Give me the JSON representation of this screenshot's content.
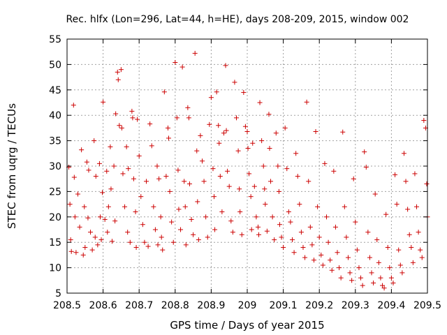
{
  "chart_data": {
    "type": "scatter",
    "title": "Rec. hlfx (Lon=296, Lat=44, h=HE), days 208-209, 2015, window 002",
    "xlabel": "GPS time / Days of year 2015",
    "ylabel": "STEC from uqrg / TECUs",
    "xlim": [
      208.5,
      209.5
    ],
    "ylim": [
      5,
      55
    ],
    "xticks": [
      208.5,
      208.6,
      208.7,
      208.8,
      208.9,
      209,
      209.1,
      209.2,
      209.3,
      209.4,
      209.5
    ],
    "xtick_labels": [
      "208.5",
      "208.6",
      "208.7",
      "208.8",
      "208.9",
      "209",
      "209.1",
      "209.2",
      "209.3",
      "209.4",
      "209.5"
    ],
    "yticks": [
      5,
      10,
      15,
      20,
      25,
      30,
      35,
      40,
      45,
      50,
      55
    ],
    "ytick_labels": [
      "5",
      "10",
      "15",
      "20",
      "25",
      "30",
      "35",
      "40",
      "45",
      "50",
      "55"
    ],
    "grid": true,
    "marker": "+",
    "color": "#cc0000",
    "series": [
      {
        "name": "STEC",
        "points": [
          [
            208.505,
            29.8
          ],
          [
            208.508,
            22.5
          ],
          [
            208.51,
            15.5
          ],
          [
            208.512,
            13.2
          ],
          [
            208.518,
            42
          ],
          [
            208.52,
            27.8
          ],
          [
            208.522,
            20
          ],
          [
            208.525,
            13
          ],
          [
            208.53,
            24.5
          ],
          [
            208.535,
            18
          ],
          [
            208.54,
            33.2
          ],
          [
            208.545,
            12.5
          ],
          [
            208.548,
            22
          ],
          [
            208.55,
            14
          ],
          [
            208.555,
            30.8
          ],
          [
            208.558,
            19.8
          ],
          [
            208.56,
            29.2
          ],
          [
            208.565,
            17
          ],
          [
            208.57,
            13.5
          ],
          [
            208.575,
            35
          ],
          [
            208.578,
            16
          ],
          [
            208.58,
            28
          ],
          [
            208.585,
            14.5
          ],
          [
            208.59,
            30.5
          ],
          [
            208.592,
            20
          ],
          [
            208.595,
            15.5
          ],
          [
            208.598,
            24.8
          ],
          [
            208.6,
            42.6
          ],
          [
            208.605,
            19.5
          ],
          [
            208.61,
            29
          ],
          [
            208.612,
            17
          ],
          [
            208.615,
            22
          ],
          [
            208.62,
            33.8
          ],
          [
            208.622,
            25.5
          ],
          [
            208.625,
            15.2
          ],
          [
            208.63,
            30
          ],
          [
            208.633,
            19.2
          ],
          [
            208.635,
            40.3
          ],
          [
            208.64,
            48.5
          ],
          [
            208.642,
            47
          ],
          [
            208.645,
            38
          ],
          [
            208.65,
            49
          ],
          [
            208.652,
            37.5
          ],
          [
            208.655,
            28.5
          ],
          [
            208.66,
            22
          ],
          [
            208.665,
            33.8
          ],
          [
            208.668,
            17
          ],
          [
            208.67,
            29.5
          ],
          [
            208.675,
            15
          ],
          [
            208.68,
            40.8
          ],
          [
            208.682,
            39.5
          ],
          [
            208.685,
            27.5
          ],
          [
            208.69,
            21
          ],
          [
            208.692,
            14
          ],
          [
            208.695,
            39.2
          ],
          [
            208.7,
            32
          ],
          [
            208.705,
            24
          ],
          [
            208.71,
            18.5
          ],
          [
            208.715,
            15
          ],
          [
            208.72,
            27
          ],
          [
            208.725,
            14.2
          ],
          [
            208.73,
            38.3
          ],
          [
            208.735,
            34
          ],
          [
            208.74,
            22
          ],
          [
            208.745,
            17.5
          ],
          [
            208.75,
            30
          ],
          [
            208.752,
            14.5
          ],
          [
            208.755,
            27.5
          ],
          [
            208.76,
            20
          ],
          [
            208.762,
            16
          ],
          [
            208.765,
            13.5
          ],
          [
            208.77,
            44.6
          ],
          [
            208.775,
            28
          ],
          [
            208.78,
            37.5
          ],
          [
            208.782,
            35.5
          ],
          [
            208.785,
            25
          ],
          [
            208.79,
            19
          ],
          [
            208.795,
            15
          ],
          [
            208.8,
            50.4
          ],
          [
            208.805,
            39.5
          ],
          [
            208.808,
            29.2
          ],
          [
            208.81,
            21.5
          ],
          [
            208.815,
            17.5
          ],
          [
            208.82,
            49.5
          ],
          [
            208.825,
            27
          ],
          [
            208.828,
            22
          ],
          [
            208.83,
            14.5
          ],
          [
            208.835,
            41.5
          ],
          [
            208.838,
            39.5
          ],
          [
            208.84,
            26.5
          ],
          [
            208.845,
            19.5
          ],
          [
            208.85,
            16.5
          ],
          [
            208.855,
            52.2
          ],
          [
            208.86,
            33
          ],
          [
            208.862,
            23
          ],
          [
            208.865,
            15.5
          ],
          [
            208.87,
            36
          ],
          [
            208.875,
            31
          ],
          [
            208.88,
            27
          ],
          [
            208.885,
            20
          ],
          [
            208.89,
            16
          ],
          [
            208.895,
            38.2
          ],
          [
            208.9,
            43.5
          ],
          [
            208.905,
            29.5
          ],
          [
            208.908,
            24
          ],
          [
            208.91,
            17.5
          ],
          [
            208.915,
            44.6
          ],
          [
            208.92,
            38
          ],
          [
            208.922,
            34.5
          ],
          [
            208.925,
            28
          ],
          [
            208.93,
            21
          ],
          [
            208.935,
            36.5
          ],
          [
            208.94,
            49.8
          ],
          [
            208.942,
            37
          ],
          [
            208.945,
            29
          ],
          [
            208.95,
            26
          ],
          [
            208.955,
            19.2
          ],
          [
            208.96,
            17
          ],
          [
            208.965,
            46.5
          ],
          [
            208.97,
            39.5
          ],
          [
            208.975,
            33
          ],
          [
            208.978,
            25.5
          ],
          [
            208.98,
            21
          ],
          [
            208.985,
            16.5
          ],
          [
            208.99,
            44.5
          ],
          [
            208.995,
            37.8
          ],
          [
            209.0,
            36.8
          ],
          [
            209.002,
            33.5
          ],
          [
            209.005,
            28.5
          ],
          [
            209.01,
            24
          ],
          [
            209.012,
            17.5
          ],
          [
            209.015,
            34.5
          ],
          [
            209.02,
            26
          ],
          [
            209.025,
            20
          ],
          [
            209.03,
            18
          ],
          [
            209.032,
            16.5
          ],
          [
            209.035,
            42.5
          ],
          [
            209.04,
            35
          ],
          [
            209.045,
            30
          ],
          [
            209.048,
            25.5
          ],
          [
            209.05,
            22.5
          ],
          [
            209.055,
            17.2
          ],
          [
            209.06,
            40.2
          ],
          [
            209.062,
            33.5
          ],
          [
            209.065,
            27
          ],
          [
            209.07,
            20
          ],
          [
            209.075,
            15.5
          ],
          [
            209.08,
            36.5
          ],
          [
            209.085,
            30
          ],
          [
            209.088,
            25
          ],
          [
            209.09,
            18.5
          ],
          [
            209.095,
            16
          ],
          [
            209.1,
            14
          ],
          [
            209.105,
            37.5
          ],
          [
            209.11,
            29.5
          ],
          [
            209.115,
            21
          ],
          [
            209.12,
            19
          ],
          [
            209.125,
            15.5
          ],
          [
            209.13,
            13
          ],
          [
            209.135,
            32.5
          ],
          [
            209.14,
            28
          ],
          [
            209.145,
            22.5
          ],
          [
            209.15,
            17
          ],
          [
            209.155,
            14
          ],
          [
            209.16,
            12
          ],
          [
            209.165,
            42.6
          ],
          [
            209.17,
            27
          ],
          [
            209.175,
            18
          ],
          [
            209.18,
            14.5
          ],
          [
            209.185,
            11.5
          ],
          [
            209.19,
            36.8
          ],
          [
            209.195,
            22
          ],
          [
            209.2,
            16
          ],
          [
            209.205,
            12.5
          ],
          [
            209.21,
            10.5
          ],
          [
            209.215,
            30.5
          ],
          [
            209.22,
            20
          ],
          [
            209.225,
            15
          ],
          [
            209.23,
            11.5
          ],
          [
            209.235,
            9.5
          ],
          [
            209.24,
            29
          ],
          [
            209.245,
            18
          ],
          [
            209.25,
            13
          ],
          [
            209.255,
            10
          ],
          [
            209.26,
            8
          ],
          [
            209.265,
            36.7
          ],
          [
            209.27,
            22
          ],
          [
            209.275,
            16
          ],
          [
            209.28,
            12
          ],
          [
            209.285,
            9
          ],
          [
            209.29,
            7.5
          ],
          [
            209.295,
            27.5
          ],
          [
            209.3,
            19
          ],
          [
            209.305,
            13.5
          ],
          [
            209.31,
            10
          ],
          [
            209.315,
            8
          ],
          [
            209.32,
            6.5
          ],
          [
            209.325,
            32.8
          ],
          [
            209.33,
            29.8
          ],
          [
            209.335,
            17
          ],
          [
            209.34,
            12
          ],
          [
            209.345,
            9
          ],
          [
            209.35,
            7
          ],
          [
            209.355,
            24.5
          ],
          [
            209.36,
            15.5
          ],
          [
            209.365,
            11
          ],
          [
            209.37,
            8
          ],
          [
            209.375,
            6.5
          ],
          [
            209.38,
            6
          ],
          [
            209.385,
            20.5
          ],
          [
            209.39,
            14
          ],
          [
            209.395,
            10
          ],
          [
            209.4,
            8
          ],
          [
            209.405,
            7
          ],
          [
            209.41,
            28.3
          ],
          [
            209.415,
            22.5
          ],
          [
            209.42,
            13.5
          ],
          [
            209.425,
            10.5
          ],
          [
            209.43,
            9
          ],
          [
            209.435,
            32.5
          ],
          [
            209.44,
            27
          ],
          [
            209.445,
            21.5
          ],
          [
            209.45,
            16.5
          ],
          [
            209.455,
            14
          ],
          [
            209.46,
            11
          ],
          [
            209.465,
            28.5
          ],
          [
            209.47,
            22
          ],
          [
            209.475,
            17
          ],
          [
            209.48,
            13.5
          ],
          [
            209.485,
            12
          ],
          [
            209.49,
            39
          ],
          [
            209.495,
            37.5
          ],
          [
            209.498,
            26.5
          ],
          [
            209.5,
            20
          ]
        ]
      }
    ]
  }
}
